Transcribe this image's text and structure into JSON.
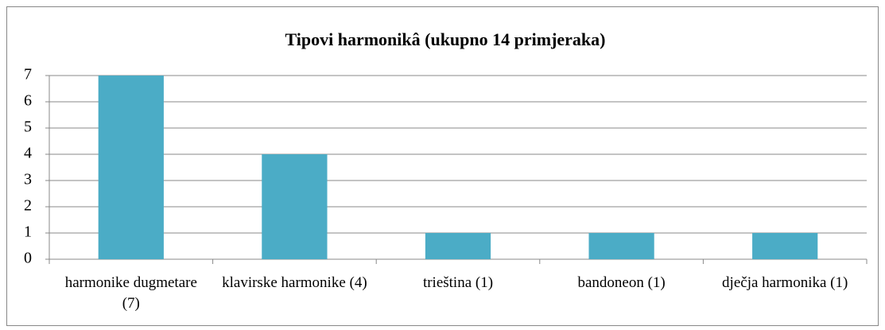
{
  "chart_data": {
    "type": "bar",
    "title": "Tipovi harmonikâ (ukupno 14 primjeraka)",
    "categories": [
      "harmonike dugmetare (7)",
      "klavirske harmonike (4)",
      "trieština (1)",
      "bandoneon (1)",
      "dječja harmonika (1)"
    ],
    "values": [
      7,
      4,
      1,
      1,
      1
    ],
    "color": "#4bacc6",
    "ylim": [
      0,
      7
    ],
    "yticks": [
      0,
      1,
      2,
      3,
      4,
      5,
      6,
      7
    ],
    "grid": true
  }
}
